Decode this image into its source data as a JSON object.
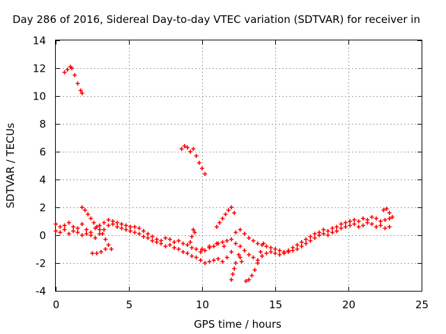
{
  "chart_data": {
    "type": "scatter",
    "title": "Day 286 of 2016, Sidereal Day-to-day VTEC variation (SDTVAR) for receiver in",
    "xlabel": "GPS time / hours",
    "ylabel": "SDTVAR / TECUs",
    "xlim": [
      0,
      25
    ],
    "ylim": [
      -4,
      14
    ],
    "x_ticks": [
      "0",
      "5",
      "10",
      "15",
      "20",
      "25"
    ],
    "y_ticks": [
      "-4",
      "-2",
      "0",
      "2",
      "4",
      "6",
      "8",
      "10",
      "12",
      "14"
    ],
    "grid": true,
    "legend": "none",
    "marker": "plus",
    "color": "#ff0000",
    "series": [
      {
        "x": [
          0.6,
          0.8,
          1.0,
          1.1,
          1.3,
          1.5,
          1.7,
          1.8
        ],
        "y": [
          11.7,
          11.9,
          12.1,
          12.0,
          11.5,
          10.9,
          10.4,
          10.2
        ]
      },
      {
        "x": [
          8.6,
          8.8,
          9.0,
          9.2,
          9.4,
          9.6,
          9.8,
          10.0,
          10.2
        ],
        "y": [
          6.2,
          6.4,
          6.3,
          6.0,
          6.2,
          5.7,
          5.2,
          4.8,
          4.4
        ]
      },
      {
        "x": [
          0.0,
          0.3,
          0.6,
          0.9,
          1.2,
          1.5,
          1.8,
          2.1,
          2.4,
          2.7,
          3.0,
          3.3,
          3.6,
          3.9,
          4.2,
          4.5,
          4.8,
          5.1,
          5.4,
          5.7,
          6.0,
          6.3,
          6.6,
          6.9,
          7.2,
          7.5,
          7.8,
          8.1,
          8.4,
          8.7,
          9.0,
          9.3,
          9.6,
          9.9,
          10.2,
          10.5,
          10.8,
          11.1,
          11.4,
          11.7,
          12.0,
          12.3,
          12.6,
          12.9,
          13.2,
          13.5,
          13.8,
          14.1,
          14.4,
          14.7,
          15.0,
          15.3,
          15.6,
          15.9,
          16.2,
          16.5,
          16.8,
          17.1,
          17.4,
          17.7,
          18.0,
          18.3,
          18.6,
          18.9,
          19.2,
          19.5,
          19.8,
          20.1,
          20.4,
          20.7,
          21.0,
          21.3,
          21.6,
          21.9,
          22.2,
          22.5,
          22.8
        ],
        "y": [
          0.8,
          0.6,
          0.7,
          0.9,
          0.6,
          0.5,
          0.8,
          0.4,
          0.2,
          0.5,
          0.7,
          0.9,
          1.1,
          1.0,
          0.9,
          0.8,
          0.7,
          0.6,
          0.6,
          0.5,
          0.3,
          0.1,
          -0.1,
          -0.3,
          -0.4,
          -0.2,
          -0.3,
          -0.5,
          -0.4,
          -0.6,
          -0.7,
          -0.9,
          -1.0,
          -1.2,
          -1.1,
          -0.9,
          -0.8,
          -0.6,
          -0.5,
          -0.4,
          -0.3,
          0.2,
          0.4,
          0.1,
          -0.2,
          -0.4,
          -0.6,
          -0.7,
          -0.8,
          -0.9,
          -1.0,
          -1.1,
          -1.2,
          -1.1,
          -0.9,
          -0.7,
          -0.5,
          -0.3,
          -0.1,
          0.1,
          0.2,
          0.4,
          0.3,
          0.5,
          0.6,
          0.8,
          0.9,
          1.0,
          1.1,
          1.0,
          1.2,
          1.1,
          1.3,
          1.2,
          1.0,
          1.1,
          1.2
        ]
      },
      {
        "x": [
          0.0,
          0.3,
          0.6,
          0.9,
          1.2,
          1.5,
          1.8,
          2.1,
          2.4,
          2.7,
          3.0,
          3.3,
          3.6,
          3.9,
          4.2,
          4.5,
          4.8,
          5.1,
          5.4,
          5.7,
          6.0,
          6.3,
          6.6,
          6.9,
          7.2,
          7.5,
          7.8,
          8.1,
          8.4,
          8.7,
          9.0,
          9.3,
          9.6,
          9.9,
          10.2,
          10.5,
          10.8,
          11.1,
          11.4,
          11.7,
          12.0,
          12.3,
          12.6,
          12.9,
          13.2,
          13.5,
          13.8,
          14.1,
          14.4,
          14.7,
          15.0,
          15.3,
          15.6,
          15.9,
          16.2,
          16.5,
          16.8,
          17.1,
          17.4,
          17.7,
          18.0,
          18.3,
          18.6,
          18.9,
          19.2,
          19.5,
          19.8,
          20.1,
          20.4,
          20.7,
          21.0,
          21.3,
          21.6,
          21.9,
          22.2,
          22.5,
          22.8
        ],
        "y": [
          0.3,
          0.2,
          0.4,
          0.1,
          0.3,
          0.2,
          0.0,
          0.1,
          0.0,
          -0.2,
          0.1,
          0.4,
          0.7,
          0.8,
          0.6,
          0.5,
          0.4,
          0.3,
          0.2,
          0.1,
          -0.1,
          -0.2,
          -0.4,
          -0.5,
          -0.6,
          -0.8,
          -0.7,
          -0.9,
          -1.0,
          -1.2,
          -1.3,
          -1.5,
          -1.6,
          -1.8,
          -2.0,
          -1.9,
          -1.8,
          -1.7,
          -1.9,
          -1.6,
          -1.2,
          -0.6,
          -0.8,
          -1.1,
          -1.4,
          -1.6,
          -1.8,
          -1.5,
          -1.3,
          -1.2,
          -1.3,
          -1.4,
          -1.3,
          -1.2,
          -1.1,
          -1.0,
          -0.8,
          -0.6,
          -0.4,
          -0.2,
          0.0,
          0.1,
          0.0,
          0.2,
          0.3,
          0.5,
          0.6,
          0.7,
          0.8,
          0.6,
          0.7,
          0.9,
          0.8,
          0.6,
          0.7,
          0.5,
          0.6
        ]
      },
      {
        "x": [
          1.8,
          2.0,
          2.2,
          2.4,
          2.6,
          2.8,
          3.0,
          3.2,
          3.4,
          3.6,
          3.8
        ],
        "y": [
          2.0,
          1.8,
          1.5,
          1.2,
          0.9,
          0.6,
          0.4,
          0.1,
          -0.3,
          -0.7,
          -1.0
        ]
      },
      {
        "x": [
          2.5,
          2.8,
          3.1,
          3.4
        ],
        "y": [
          -1.3,
          -1.3,
          -1.2,
          -1.0
        ]
      },
      {
        "x": [
          11.0,
          11.2,
          11.4,
          11.6,
          11.8,
          12.0,
          12.2
        ],
        "y": [
          0.6,
          0.9,
          1.2,
          1.5,
          1.8,
          2.0,
          1.6
        ]
      },
      {
        "x": [
          12.0,
          12.1,
          12.2,
          12.3
        ],
        "y": [
          -3.2,
          -2.8,
          -2.4,
          -2.0
        ]
      },
      {
        "x": [
          12.5,
          12.6,
          12.7
        ],
        "y": [
          -1.4,
          -1.6,
          -1.9
        ]
      },
      {
        "x": [
          13.0,
          13.2,
          13.4,
          13.6,
          13.8,
          14.0,
          14.2
        ],
        "y": [
          -3.3,
          -3.2,
          -2.9,
          -2.5,
          -2.0,
          -1.2,
          -0.6
        ]
      },
      {
        "x": [
          10.0,
          10.5,
          11.0,
          11.5
        ],
        "y": [
          -1.0,
          -0.8,
          -0.6,
          -0.8
        ]
      },
      {
        "x": [
          9.2,
          9.3,
          9.4,
          9.5
        ],
        "y": [
          -0.5,
          -0.1,
          0.4,
          0.2
        ]
      },
      {
        "x": [
          22.4,
          22.6,
          22.8,
          23.0
        ],
        "y": [
          1.8,
          1.9,
          1.6,
          1.3
        ]
      }
    ]
  }
}
